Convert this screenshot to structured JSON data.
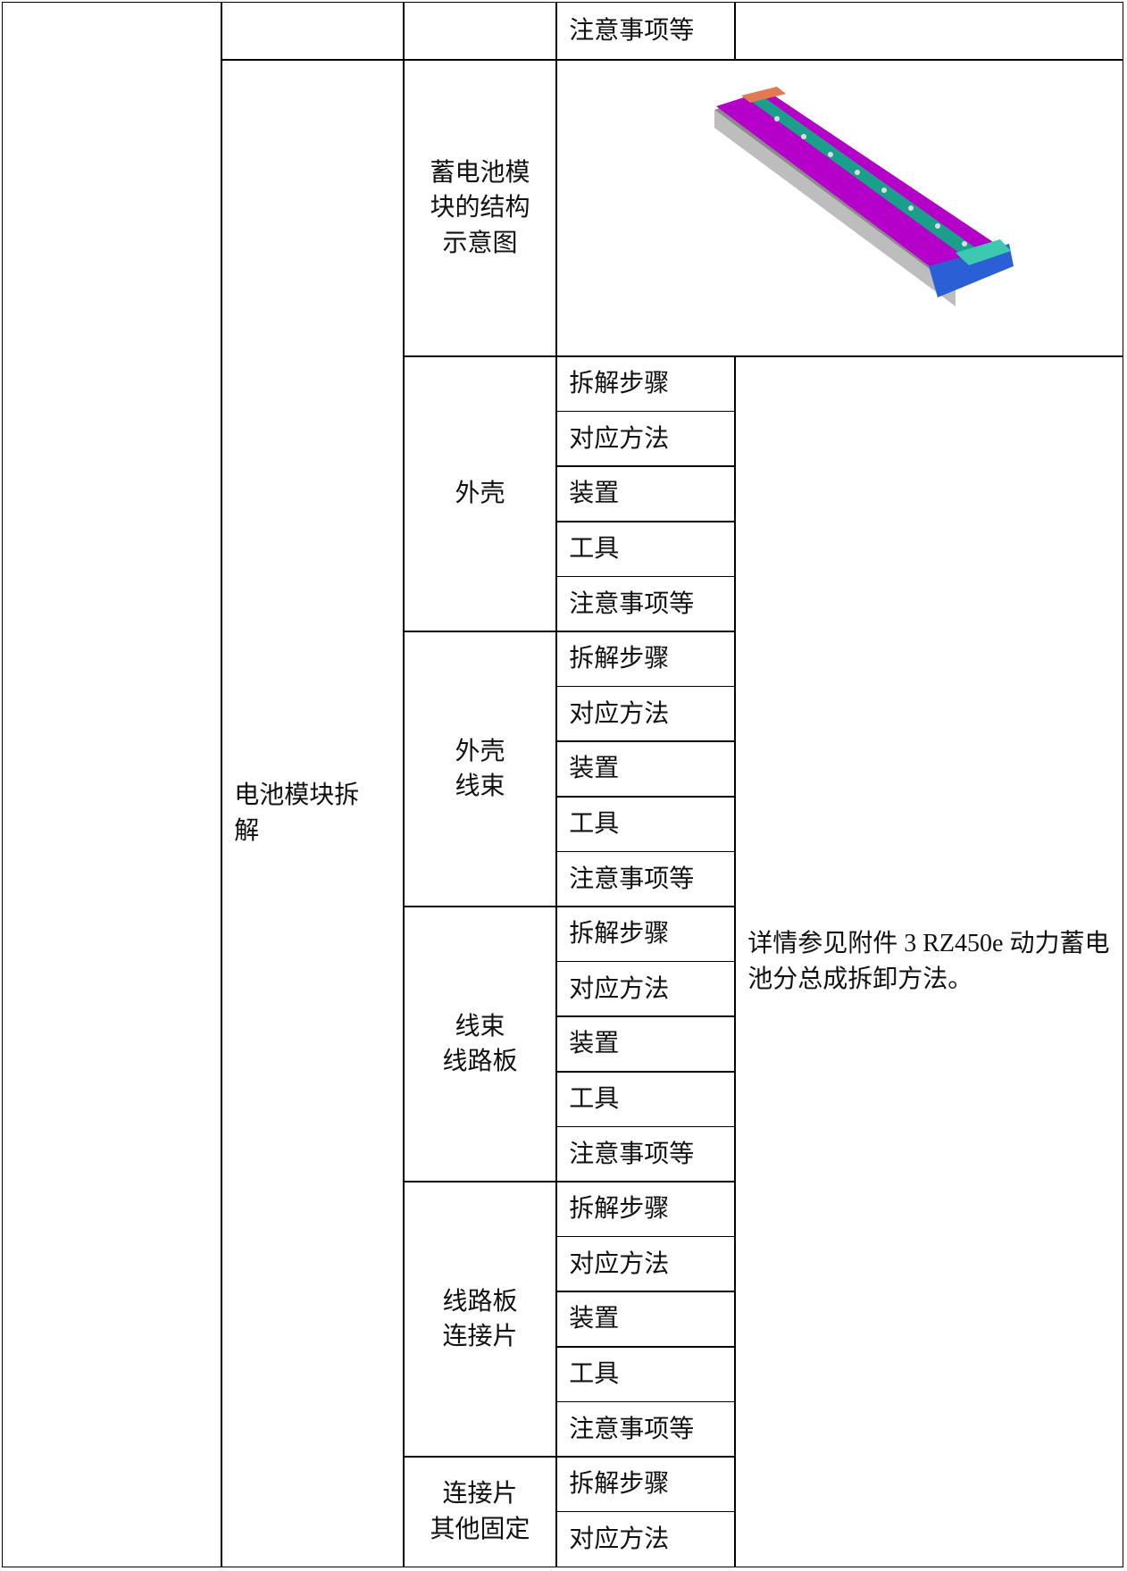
{
  "top_row": {
    "item": "注意事项等"
  },
  "section": {
    "label": "电池模块拆\n解",
    "diagram_label": "蓄电池模\n块的结构\n示意图",
    "groups": [
      {
        "name": "外壳",
        "items": [
          "拆解步骤",
          "对应方法",
          "装置",
          "工具",
          "注意事项等"
        ]
      },
      {
        "name": "外壳\n线束",
        "items": [
          "拆解步骤",
          "对应方法",
          "装置",
          "工具",
          "注意事项等"
        ]
      },
      {
        "name": "线束\n线路板",
        "items": [
          "拆解步骤",
          "对应方法",
          "装置",
          "工具",
          "注意事项等"
        ]
      },
      {
        "name": "线路板\n连接片",
        "items": [
          "拆解步骤",
          "对应方法",
          "装置",
          "工具",
          "注意事项等"
        ]
      },
      {
        "name": "连接片\n其他固定",
        "items": [
          "拆解步骤",
          "对应方法"
        ]
      }
    ],
    "note": "详情参见附件 3 RZ450e 动力蓄电池分总成拆卸方法。"
  }
}
